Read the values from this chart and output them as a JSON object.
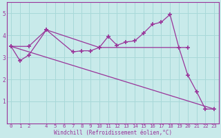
{
  "xlabel": "Windchill (Refroidissement éolien,°C)",
  "background_color": "#c8eaea",
  "grid_color": "#a8d8d8",
  "line_color": "#993399",
  "spine_color": "#993399",
  "xlim": [
    -0.5,
    23.5
  ],
  "ylim": [
    0,
    5.5
  ],
  "yticks": [
    1,
    2,
    3,
    4,
    5
  ],
  "xticks": [
    0,
    1,
    2,
    4,
    5,
    6,
    7,
    8,
    9,
    10,
    11,
    12,
    13,
    14,
    15,
    16,
    17,
    18,
    19,
    20,
    21,
    22,
    23
  ],
  "line1_x": [
    0,
    1,
    2,
    4,
    7,
    8,
    9,
    10,
    11,
    12,
    13,
    14,
    15,
    16,
    17,
    18,
    19,
    20,
    21,
    22,
    23
  ],
  "line1_y": [
    3.5,
    2.85,
    3.1,
    4.25,
    3.25,
    3.3,
    3.3,
    3.45,
    3.95,
    3.55,
    3.7,
    3.75,
    4.1,
    4.5,
    4.6,
    4.95,
    3.45,
    2.2,
    1.45,
    0.65,
    0.65
  ],
  "line2_x": [
    0,
    2,
    4,
    10,
    20
  ],
  "line2_y": [
    3.5,
    3.5,
    4.25,
    3.45,
    3.45
  ],
  "line3_x": [
    0,
    23
  ],
  "line3_y": [
    3.5,
    0.65
  ],
  "xlabel_fontsize": 5.5,
  "tick_fontsize": 5.2
}
